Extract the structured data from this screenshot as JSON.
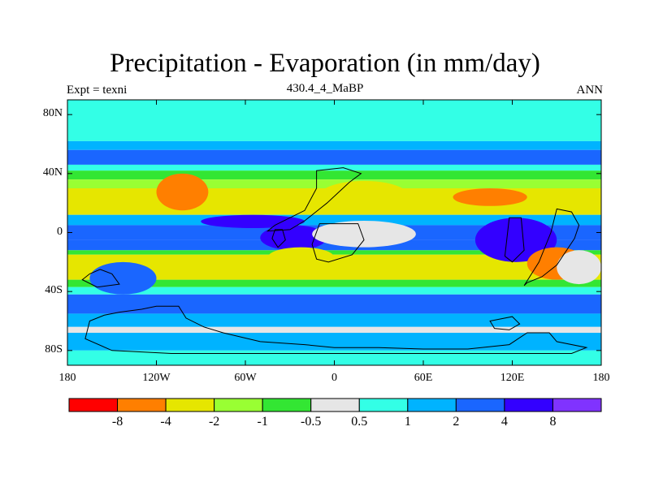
{
  "chart_data": {
    "type": "heatmap",
    "title": "Precipitation - Evaporation (in mm/day)",
    "left_label": "Expt = texni",
    "center_label": "430.4_4_MaBP",
    "right_label": "ANN",
    "x_range": [
      -180,
      180
    ],
    "y_range": [
      -90,
      90
    ],
    "x_ticks": [
      {
        "value": -180,
        "label": "180"
      },
      {
        "value": -120,
        "label": "120W"
      },
      {
        "value": -60,
        "label": "60W"
      },
      {
        "value": 0,
        "label": "0"
      },
      {
        "value": 60,
        "label": "60E"
      },
      {
        "value": 120,
        "label": "120E"
      },
      {
        "value": 180,
        "label": "180"
      }
    ],
    "y_ticks": [
      {
        "value": 80,
        "label": "80N"
      },
      {
        "value": 40,
        "label": "40N"
      },
      {
        "value": 0,
        "label": "0"
      },
      {
        "value": -40,
        "label": "40S"
      },
      {
        "value": -80,
        "label": "80S"
      }
    ],
    "colorbar": {
      "colors": [
        "#ff0000",
        "#ff7f00",
        "#e6e600",
        "#99ff33",
        "#33e633",
        "#e6e6e6",
        "#33ffe6",
        "#00b3ff",
        "#1a66ff",
        "#3300ff",
        "#8033ff"
      ],
      "labels": [
        "-8",
        "-4",
        "-2",
        "-1",
        "-0.5",
        "0.5",
        "1",
        "2",
        "4",
        "8"
      ]
    },
    "zonal_bands": [
      {
        "lat_top": 90,
        "lat_bottom": 62,
        "value": 0.7
      },
      {
        "lat_top": 62,
        "lat_bottom": 56,
        "value": 1.5
      },
      {
        "lat_top": 56,
        "lat_bottom": 46,
        "value": 2.5
      },
      {
        "lat_top": 46,
        "lat_bottom": 42,
        "value": 0.8
      },
      {
        "lat_top": 42,
        "lat_bottom": 36,
        "value": -0.8
      },
      {
        "lat_top": 36,
        "lat_bottom": 30,
        "value": -1.5
      },
      {
        "lat_top": 30,
        "lat_bottom": 12,
        "value": -2.5
      },
      {
        "lat_top": 12,
        "lat_bottom": 5,
        "value": 1.5
      },
      {
        "lat_top": 5,
        "lat_bottom": -5,
        "value": 3
      },
      {
        "lat_top": -5,
        "lat_bottom": -12,
        "value": 2.5
      },
      {
        "lat_top": -12,
        "lat_bottom": -15,
        "value": -0.7
      },
      {
        "lat_top": -15,
        "lat_bottom": -32,
        "value": -2.5
      },
      {
        "lat_top": -32,
        "lat_bottom": -37,
        "value": -0.7
      },
      {
        "lat_top": -37,
        "lat_bottom": -42,
        "value": 0.7
      },
      {
        "lat_top": -42,
        "lat_bottom": -55,
        "value": 2.5
      },
      {
        "lat_top": -55,
        "lat_bottom": -64,
        "value": 1.5
      },
      {
        "lat_top": -64,
        "lat_bottom": -68,
        "value": 0.3
      },
      {
        "lat_top": -68,
        "lat_bottom": -80,
        "value": 1.5
      },
      {
        "lat_top": -80,
        "lat_bottom": -90,
        "value": 0.7
      }
    ],
    "regional_anomalies": [
      {
        "lon": [
          -120,
          -85
        ],
        "lat": [
          40,
          15
        ],
        "value": -5
      },
      {
        "lon": [
          -90,
          -20
        ],
        "lat": [
          12,
          3
        ],
        "value": 4
      },
      {
        "lon": [
          -50,
          -5
        ],
        "lat": [
          5,
          -12
        ],
        "value": 6
      },
      {
        "lon": [
          -45,
          0
        ],
        "lat": [
          -10,
          -24
        ],
        "value": -2.5
      },
      {
        "lon": [
          -15,
          55
        ],
        "lat": [
          8,
          -10
        ],
        "value": 0.3
      },
      {
        "lon": [
          -10,
          50
        ],
        "lat": [
          35,
          15
        ],
        "value": -2.5
      },
      {
        "lon": [
          80,
          130
        ],
        "lat": [
          30,
          18
        ],
        "value": -5
      },
      {
        "lon": [
          95,
          150
        ],
        "lat": [
          10,
          -20
        ],
        "value": 4.5
      },
      {
        "lon": [
          130,
          170
        ],
        "lat": [
          -10,
          -32
        ],
        "value": -5
      },
      {
        "lon": [
          150,
          180
        ],
        "lat": [
          -12,
          -35
        ],
        "value": 0.3
      },
      {
        "lon": [
          -165,
          -120
        ],
        "lat": [
          -20,
          -42
        ],
        "value": 2
      }
    ],
    "coastlines": [
      {
        "name": "northern-continent",
        "points": [
          [
            -12,
            42
          ],
          [
            6,
            44
          ],
          [
            18,
            40
          ],
          [
            10,
            34
          ],
          [
            -5,
            20
          ],
          [
            -20,
            8
          ],
          [
            -30,
            2
          ],
          [
            -45,
            1
          ],
          [
            -40,
            5
          ],
          [
            -20,
            15
          ],
          [
            -12,
            30
          ]
        ]
      },
      {
        "name": "western-island",
        "points": [
          [
            -40,
            2
          ],
          [
            -35,
            2
          ],
          [
            -33,
            -5
          ],
          [
            -38,
            -10
          ],
          [
            -42,
            -4
          ]
        ]
      },
      {
        "name": "central-landmass",
        "points": [
          [
            -10,
            6
          ],
          [
            16,
            6
          ],
          [
            20,
            -5
          ],
          [
            12,
            -15
          ],
          [
            -4,
            -20
          ],
          [
            -12,
            -18
          ],
          [
            -15,
            -8
          ]
        ]
      },
      {
        "name": "eastern-strip",
        "points": [
          [
            118,
            10
          ],
          [
            126,
            10
          ],
          [
            128,
            -12
          ],
          [
            120,
            -20
          ],
          [
            115,
            -16
          ]
        ]
      },
      {
        "name": "eastern-landmass",
        "points": [
          [
            150,
            16
          ],
          [
            160,
            14
          ],
          [
            165,
            5
          ],
          [
            162,
            -4
          ],
          [
            150,
            -22
          ],
          [
            140,
            -30
          ],
          [
            130,
            -34
          ],
          [
            128,
            -36
          ],
          [
            138,
            -20
          ],
          [
            146,
            0
          ]
        ]
      },
      {
        "name": "southern-continent",
        "points": [
          [
            -165,
            -60
          ],
          [
            -155,
            -56
          ],
          [
            -145,
            -54
          ],
          [
            -130,
            -52
          ],
          [
            -120,
            -50
          ],
          [
            -105,
            -50
          ],
          [
            -100,
            -58
          ],
          [
            -88,
            -64
          ],
          [
            -75,
            -68
          ],
          [
            -50,
            -74
          ],
          [
            -20,
            -76
          ],
          [
            0,
            -78
          ],
          [
            30,
            -78
          ],
          [
            60,
            -79
          ],
          [
            90,
            -79
          ],
          [
            118,
            -76
          ],
          [
            130,
            -68
          ],
          [
            145,
            -68
          ],
          [
            150,
            -74
          ],
          [
            170,
            -78
          ],
          [
            160,
            -82
          ],
          [
            120,
            -82
          ],
          [
            60,
            -82
          ],
          [
            0,
            -82
          ],
          [
            -60,
            -82
          ],
          [
            -110,
            -82
          ],
          [
            -150,
            -80
          ],
          [
            -168,
            -72
          ]
        ]
      },
      {
        "name": "southeastern-blob",
        "points": [
          [
            105,
            -60
          ],
          [
            120,
            -57
          ],
          [
            125,
            -62
          ],
          [
            118,
            -66
          ],
          [
            108,
            -65
          ]
        ]
      },
      {
        "name": "southwestern-islands",
        "points": [
          [
            -165,
            -28
          ],
          [
            -158,
            -25
          ],
          [
            -150,
            -28
          ],
          [
            -145,
            -35
          ],
          [
            -160,
            -37
          ],
          [
            -170,
            -32
          ]
        ]
      }
    ]
  }
}
